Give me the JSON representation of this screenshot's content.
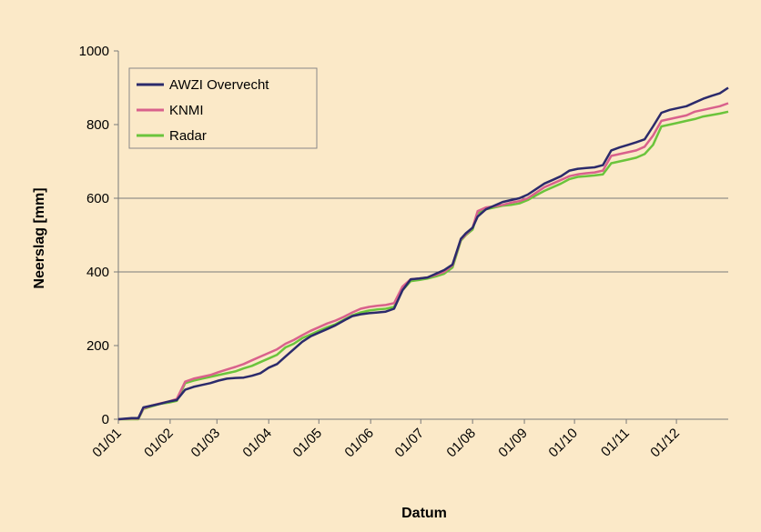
{
  "chart_data": {
    "type": "line",
    "xlabel": "Datum",
    "ylabel": "Neerslag [mm]",
    "x_tick_labels": [
      "01/01",
      "01/02",
      "01/03",
      "01/04",
      "01/05",
      "01/06",
      "01/07",
      "01/08",
      "01/09",
      "01/10",
      "01/11",
      "01/12"
    ],
    "x_tick_days": [
      0,
      31,
      59,
      90,
      120,
      151,
      181,
      212,
      243,
      273,
      304,
      334
    ],
    "xlim": [
      0,
      365
    ],
    "ylim": [
      0,
      1000
    ],
    "yticks": [
      0,
      200,
      400,
      600,
      800,
      1000
    ],
    "y_gridlines": [
      400,
      600
    ],
    "legend_position": "top-left",
    "x": [
      0,
      8,
      12,
      15,
      20,
      25,
      30,
      35,
      40,
      45,
      50,
      55,
      60,
      65,
      70,
      75,
      80,
      85,
      90,
      95,
      100,
      105,
      110,
      115,
      120,
      125,
      130,
      135,
      140,
      145,
      150,
      155,
      160,
      165,
      170,
      175,
      180,
      185,
      190,
      195,
      200,
      205,
      208,
      212,
      215,
      220,
      225,
      230,
      235,
      240,
      245,
      250,
      255,
      260,
      265,
      270,
      275,
      280,
      285,
      290,
      295,
      300,
      305,
      310,
      315,
      320,
      325,
      330,
      335,
      340,
      345,
      350,
      355,
      360,
      365
    ],
    "series": [
      {
        "name": "AWZI Overvecht",
        "color": "#2b2a6b",
        "values": [
          0,
          3,
          3,
          32,
          37,
          42,
          48,
          52,
          80,
          88,
          93,
          98,
          105,
          110,
          112,
          113,
          118,
          125,
          140,
          150,
          170,
          190,
          210,
          225,
          235,
          245,
          255,
          268,
          280,
          285,
          288,
          290,
          292,
          300,
          350,
          380,
          382,
          385,
          395,
          405,
          420,
          490,
          505,
          520,
          550,
          570,
          580,
          590,
          595,
          600,
          610,
          625,
          640,
          650,
          660,
          675,
          680,
          682,
          684,
          690,
          730,
          738,
          745,
          752,
          760,
          795,
          832,
          840,
          845,
          850,
          860,
          870,
          878,
          885,
          900
        ]
      },
      {
        "name": "KNMI",
        "color": "#d9618c",
        "values": [
          0,
          2,
          2,
          30,
          37,
          43,
          48,
          55,
          102,
          110,
          115,
          120,
          128,
          135,
          142,
          150,
          160,
          170,
          180,
          190,
          205,
          215,
          228,
          240,
          250,
          260,
          268,
          278,
          290,
          300,
          305,
          308,
          310,
          315,
          360,
          380,
          382,
          385,
          392,
          400,
          418,
          488,
          502,
          520,
          565,
          575,
          578,
          582,
          588,
          592,
          600,
          615,
          630,
          640,
          650,
          660,
          665,
          668,
          670,
          675,
          715,
          720,
          725,
          730,
          740,
          770,
          810,
          815,
          820,
          825,
          835,
          840,
          845,
          850,
          858
        ]
      },
      {
        "name": "Radar",
        "color": "#6bc43c",
        "values": [
          0,
          0,
          0,
          28,
          35,
          42,
          45,
          50,
          98,
          105,
          110,
          115,
          120,
          125,
          130,
          138,
          145,
          155,
          165,
          175,
          195,
          205,
          220,
          230,
          240,
          250,
          258,
          270,
          282,
          290,
          295,
          298,
          300,
          305,
          350,
          375,
          378,
          382,
          388,
          395,
          412,
          485,
          500,
          515,
          560,
          570,
          575,
          580,
          582,
          586,
          595,
          608,
          620,
          630,
          640,
          652,
          658,
          660,
          662,
          665,
          695,
          700,
          705,
          710,
          720,
          745,
          795,
          800,
          805,
          810,
          815,
          822,
          826,
          830,
          835
        ]
      }
    ]
  }
}
